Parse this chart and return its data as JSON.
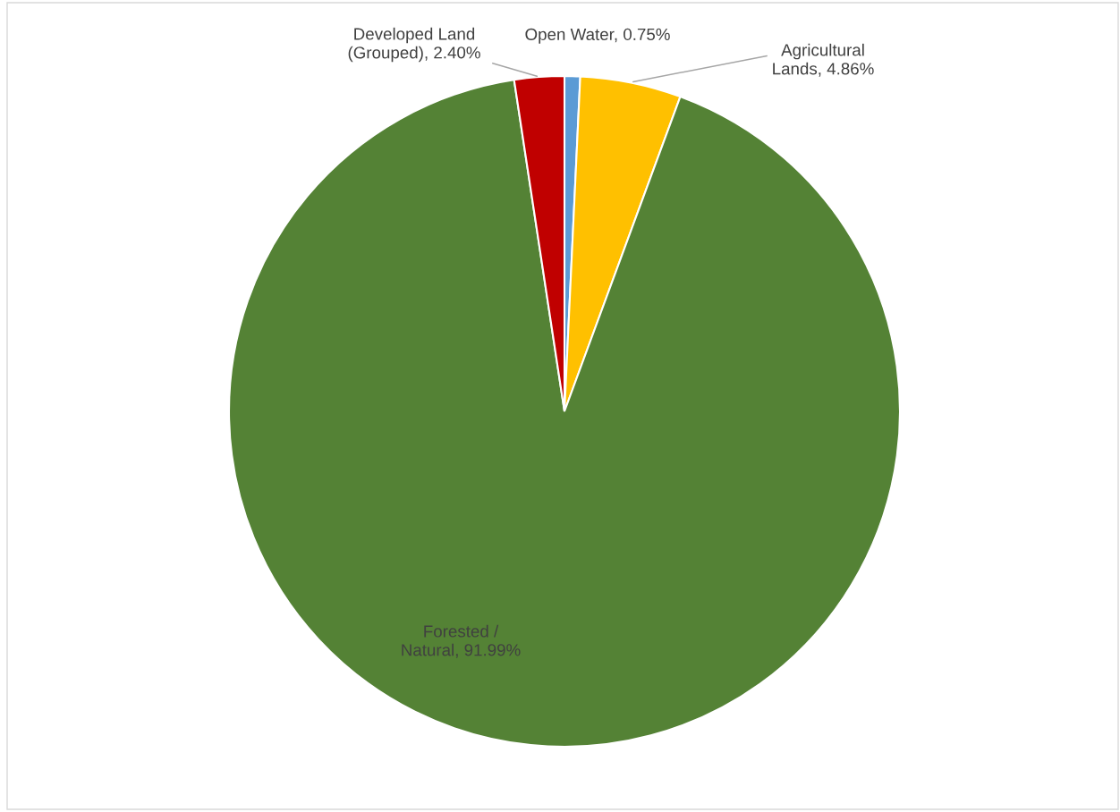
{
  "chart_data": {
    "type": "pie",
    "categories": [
      "Open Water",
      "Agricultural Lands",
      "Forested / Natural",
      "Developed Land (Grouped)"
    ],
    "values": [
      0.75,
      4.86,
      91.99,
      2.4
    ],
    "value_labels": [
      "0.75%",
      "4.86%",
      "91.99%",
      "2.40%"
    ],
    "colors": [
      "#5b9bd5",
      "#ffc000",
      "#548235",
      "#c00000"
    ],
    "legend": false
  }
}
